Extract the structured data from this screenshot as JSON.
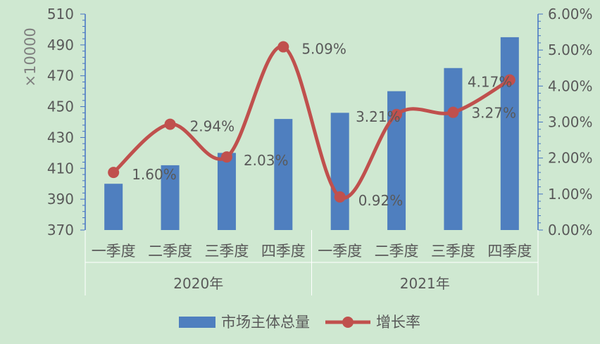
{
  "chart_data": {
    "type": "bar",
    "categories": [
      "一季度",
      "二季度",
      "三季度",
      "四季度",
      "一季度",
      "二季度",
      "三季度",
      "四季度"
    ],
    "groups": [
      {
        "label": "2020年",
        "span": 4
      },
      {
        "label": "2021年",
        "span": 4
      }
    ],
    "series": [
      {
        "name": "市场主体总量",
        "type": "bar",
        "axis": "left",
        "values": [
          400,
          412,
          420,
          442,
          446,
          460,
          475,
          495
        ],
        "color": "#4f7fbf"
      },
      {
        "name": "增长率",
        "type": "line",
        "axis": "right",
        "values": [
          1.6,
          2.94,
          2.03,
          5.09,
          0.92,
          3.21,
          3.27,
          4.17
        ],
        "labels": [
          "1.60%",
          "2.94%",
          "2.03%",
          "5.09%",
          "0.92%",
          "3.21%",
          "3.27%",
          "4.17%"
        ],
        "color": "#c0504d"
      }
    ],
    "ylabel": "×10000",
    "ylim": [
      370,
      510
    ],
    "y_ticks": [
      "370",
      "390",
      "410",
      "430",
      "450",
      "470",
      "490",
      "510"
    ],
    "y2lim": [
      0,
      6
    ],
    "y2_ticks": [
      "0.00%",
      "1.00%",
      "2.00%",
      "3.00%",
      "4.00%",
      "5.00%",
      "6.00%"
    ],
    "grid": false,
    "legend_position": "bottom",
    "axis_color": "#4472c4",
    "label_color": "#595959"
  }
}
